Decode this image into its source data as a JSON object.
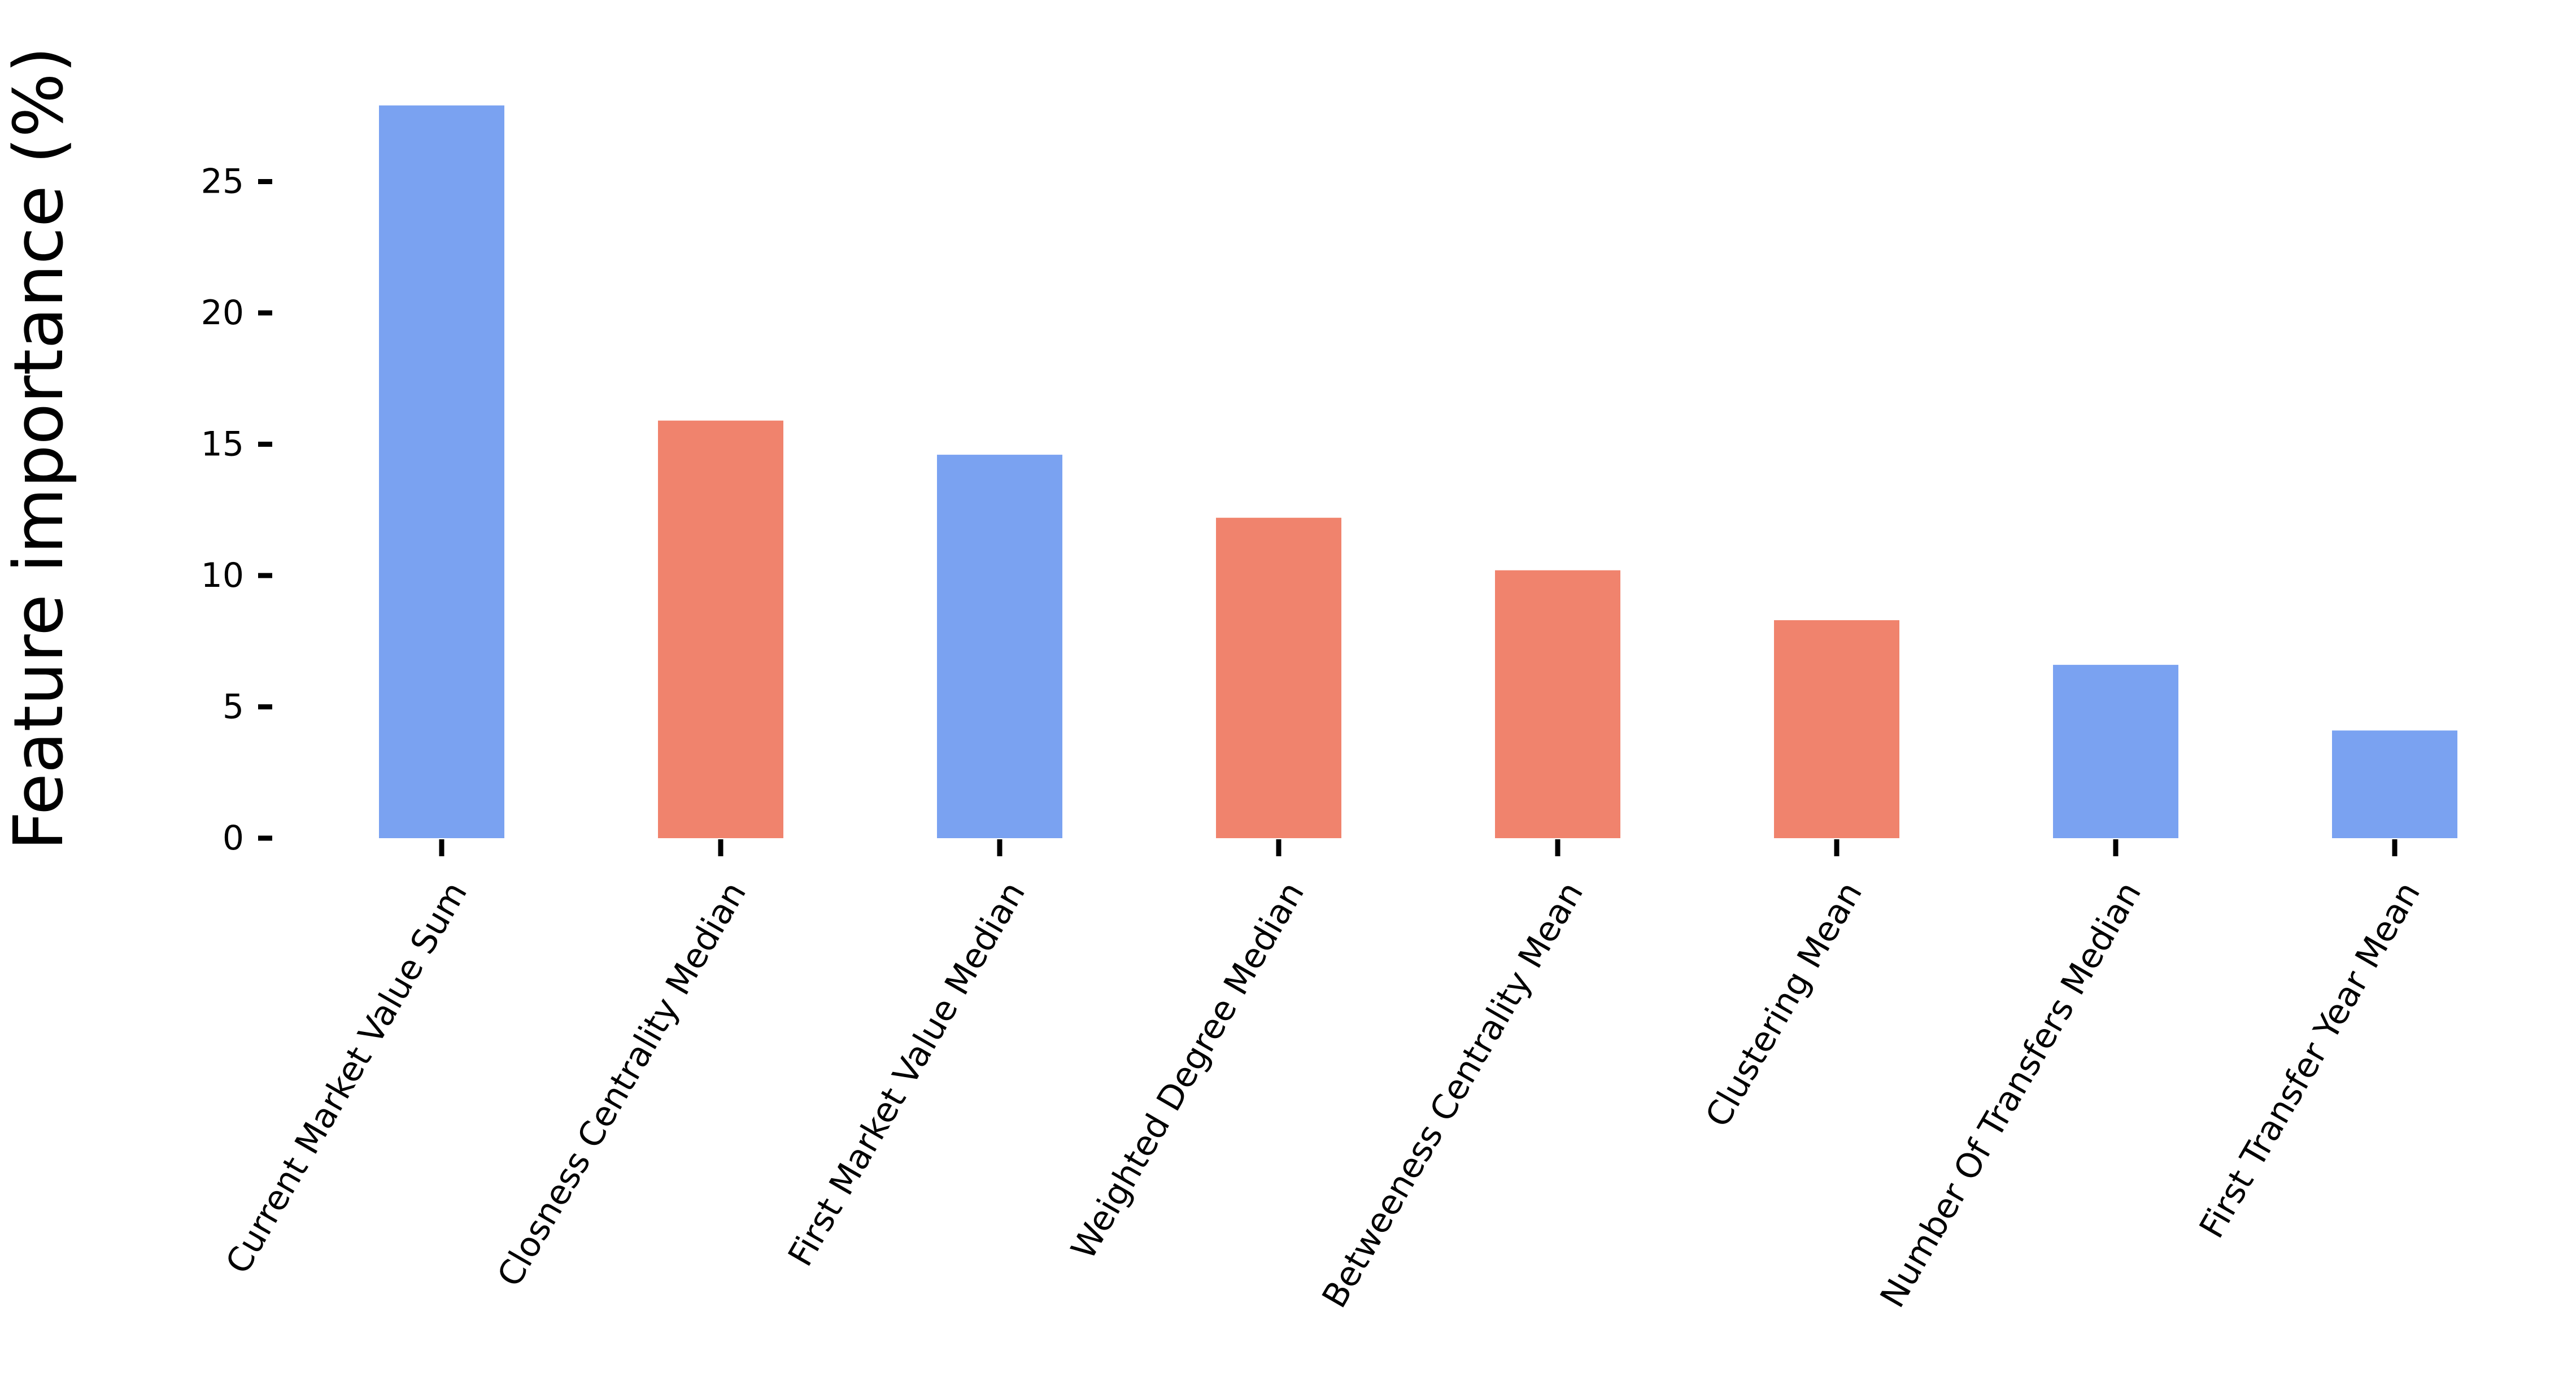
{
  "chart_data": {
    "type": "bar",
    "title": "",
    "xlabel": "",
    "ylabel": "Feature importance (%)",
    "ylim": [
      0,
      28
    ],
    "yticks": [
      0,
      5,
      10,
      15,
      20,
      25
    ],
    "grid": false,
    "legend": "none",
    "categories": [
      "Current Market Value Sum",
      "Closness Centrality Median",
      "First Market Value Median",
      "Weighted Degree Median",
      "Betweeness Centrality Mean",
      "Clustering Mean",
      "Number Of Transfers Median",
      "First Transfer Year Mean"
    ],
    "values": [
      27.9,
      15.9,
      14.6,
      12.2,
      10.2,
      8.3,
      6.6,
      4.1
    ],
    "bar_colors": [
      "#7aa2f1",
      "#f0836d",
      "#7aa2f1",
      "#f0836d",
      "#f0836d",
      "#f0836d",
      "#7aa2f1",
      "#7aa2f1"
    ]
  }
}
